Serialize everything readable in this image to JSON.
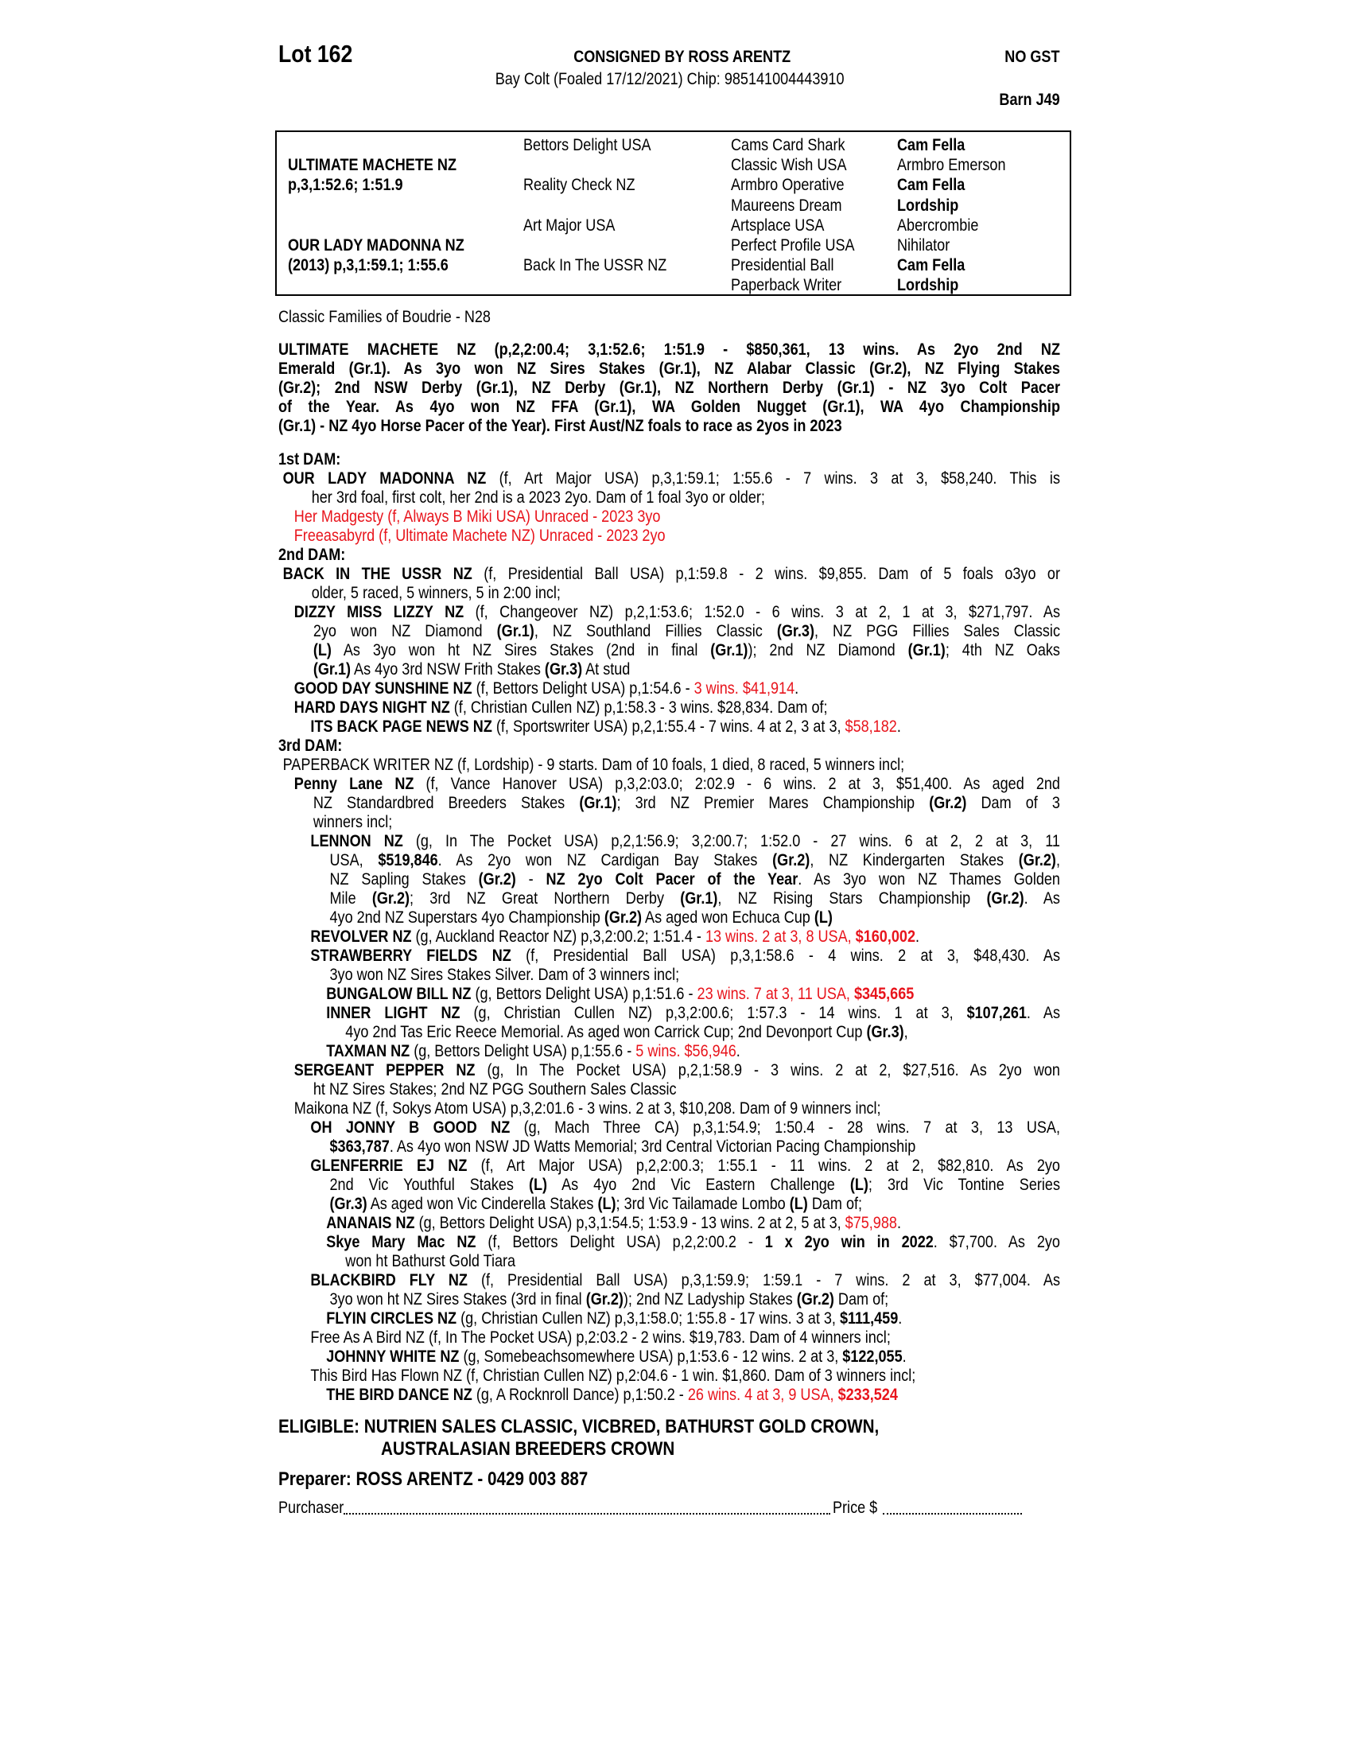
{
  "header": {
    "lot": "Lot 162",
    "consignor": "CONSIGNED BY ROSS ARENTZ",
    "description": "Bay Colt (Foaled 17/12/2021) Chip: 985141004443910",
    "gst": "NO GST",
    "barn": "Barn J49"
  },
  "pedigree": {
    "sire": {
      "name": "ULTIMATE MACHETE NZ",
      "record": "p,3,1:52.6; 1:51.9"
    },
    "dam": {
      "name": "OUR LADY MADONNA NZ",
      "record": "(2013) p,3,1:59.1; 1:55.6"
    },
    "grandparents": [
      "Bettors Delight USA",
      "Reality Check NZ",
      "Art Major USA",
      "Back In The USSR NZ"
    ],
    "great_grandparents": [
      "Cams Card Shark",
      "Classic Wish USA",
      "Armbro Operative",
      "Maureens Dream",
      "Artsplace USA",
      "Perfect Profile USA",
      "Presidential Ball",
      "Paperback Writer"
    ],
    "great_great": [
      [
        "Cam Fella",
        "b"
      ],
      [
        "Armbro Emerson",
        ""
      ],
      [
        "Cam Fella",
        "b"
      ],
      [
        "Lordship",
        "b"
      ],
      [
        "Abercrombie",
        ""
      ],
      [
        "Nihilator",
        ""
      ],
      [
        "Cam Fella",
        "b"
      ],
      [
        "Lordship",
        "b"
      ]
    ]
  },
  "family": "Classic Families of Boudrie - N28",
  "sire_para": [
    "ULTIMATE MACHETE NZ (p,2,2:00.4; 3,1:52.6; 1:51.9 - $850,361, 13 wins. As 2yo 2nd NZ",
    "Emerald (Gr.1). As 3yo won NZ Sires Stakes (Gr.1), NZ Alabar Classic (Gr.2), NZ Flying Stakes",
    "(Gr.2); 2nd NSW Derby (Gr.1), NZ Derby (Gr.1), NZ Northern Derby (Gr.1) - NZ 3yo Colt Pacer",
    "of the Year. As 4yo won NZ FFA (Gr.1), WA Golden Nugget (Gr.1), WA 4yo Championship",
    "(Gr.1) - NZ 4yo Horse Pacer of the Year). First Aust/NZ foals to race as 2yos in 2023"
  ],
  "colors": {
    "highlight": "#e8141c",
    "text": "#000000"
  },
  "body": {
    "paras": [
      {
        "heading": "1st DAM:"
      },
      {
        "level": 0,
        "lines": [
          [
            [
              "OUR LADY MADONNA NZ",
              "b"
            ],
            [
              " (f, Art Major USA) p,3,1:59.1; 1:55.6 - 7 wins. 3 at 3, $58,240. This is",
              ""
            ]
          ],
          [
            [
              "her 3rd foal, first colt, her 2nd is a 2023 2yo. Dam of 1 foal 3yo or older;",
              ""
            ]
          ]
        ]
      },
      {
        "level": 1,
        "lines": [
          [
            [
              "Her Madgesty (f, Always B Miki USA) Unraced - 2023 3yo",
              "r"
            ]
          ]
        ]
      },
      {
        "level": 1,
        "lines": [
          [
            [
              "Freeasabyrd (f, Ultimate Machete NZ) Unraced - 2023 2yo",
              "r"
            ]
          ]
        ]
      },
      {
        "heading": "2nd DAM:"
      },
      {
        "level": 0,
        "lines": [
          [
            [
              "BACK IN THE USSR NZ",
              "b"
            ],
            [
              " (f, Presidential Ball USA) p,1:59.8 - 2 wins. $9,855. Dam of 5 foals o3yo or",
              ""
            ]
          ],
          [
            [
              "older, 5 raced, 5 winners, 5 in 2:00 incl;",
              ""
            ]
          ]
        ]
      },
      {
        "level": 1,
        "lines": [
          [
            [
              "DIZZY MISS LIZZY NZ",
              "b"
            ],
            [
              " (f, Changeover NZ) p,2,1:53.6; 1:52.0 - 6 wins. 3 at 2, 1 at 3, $271,797. As",
              ""
            ]
          ],
          [
            [
              "2yo won NZ Diamond ",
              ""
            ],
            [
              "(Gr.1)",
              "b"
            ],
            [
              ", NZ Southland Fillies Classic ",
              ""
            ],
            [
              "(Gr.3)",
              "b"
            ],
            [
              ", NZ PGG Fillies Sales Classic",
              ""
            ]
          ],
          [
            [
              "(L)",
              "b"
            ],
            [
              " As 3yo won ht NZ Sires Stakes (2nd in final ",
              ""
            ],
            [
              "(Gr.1)",
              "b"
            ],
            [
              "); 2nd NZ Diamond ",
              ""
            ],
            [
              "(Gr.1)",
              "b"
            ],
            [
              "; 4th NZ Oaks",
              ""
            ]
          ],
          [
            [
              "(Gr.1)",
              "b"
            ],
            [
              " As 4yo 3rd NSW Frith Stakes ",
              ""
            ],
            [
              "(Gr.3)",
              "b"
            ],
            [
              " At stud",
              ""
            ]
          ]
        ]
      },
      {
        "level": 1,
        "lines": [
          [
            [
              "GOOD DAY SUNSHINE NZ",
              "b"
            ],
            [
              " (f, Bettors Delight USA) p,1:54.6 - ",
              ""
            ],
            [
              "3 wins. $41,914",
              "r"
            ],
            [
              ".",
              ""
            ]
          ]
        ]
      },
      {
        "level": 1,
        "lines": [
          [
            [
              "HARD DAYS NIGHT NZ",
              "b"
            ],
            [
              " (f, Christian Cullen NZ) p,1:58.3 - 3 wins. $28,834. Dam of;",
              ""
            ]
          ]
        ]
      },
      {
        "level": 2,
        "lines": [
          [
            [
              "ITS BACK PAGE NEWS NZ",
              "b"
            ],
            [
              " (f, Sportswriter USA) p,2,1:55.4 - 7 wins. 4 at 2, 3 at 3, ",
              ""
            ],
            [
              "$58,182",
              "r"
            ],
            [
              ".",
              ""
            ]
          ]
        ]
      },
      {
        "heading": "3rd DAM:"
      },
      {
        "level": 0,
        "lines": [
          [
            [
              "PAPERBACK WRITER NZ (f, Lordship) - 9 starts. Dam of 10 foals, 1 died, 8 raced, 5 winners incl;",
              ""
            ]
          ]
        ]
      },
      {
        "level": 1,
        "lines": [
          [
            [
              "Penny Lane NZ",
              "b"
            ],
            [
              " (f, Vance Hanover USA) p,3,2:03.0; 2:02.9 - 6 wins. 2 at 3, $51,400. As aged 2nd",
              ""
            ]
          ],
          [
            [
              "NZ Standardbred Breeders Stakes ",
              ""
            ],
            [
              "(Gr.1)",
              "b"
            ],
            [
              "; 3rd NZ Premier Mares Championship ",
              ""
            ],
            [
              "(Gr.2)",
              "b"
            ],
            [
              " Dam of 3",
              ""
            ]
          ],
          [
            [
              "winners incl;",
              ""
            ]
          ]
        ]
      },
      {
        "level": 2,
        "lines": [
          [
            [
              "LENNON NZ",
              "b"
            ],
            [
              " (g, In The Pocket USA) p,2,1:56.9; 3,2:00.7; 1:52.0 - 27 wins. 6 at 2, 2 at 3, 11",
              ""
            ]
          ],
          [
            [
              "USA, ",
              ""
            ],
            [
              "$519,846",
              "b"
            ],
            [
              ". As 2yo won NZ Cardigan Bay Stakes ",
              ""
            ],
            [
              "(Gr.2)",
              "b"
            ],
            [
              ", NZ Kindergarten Stakes ",
              ""
            ],
            [
              "(Gr.2)",
              "b"
            ],
            [
              ",",
              ""
            ]
          ],
          [
            [
              "NZ Sapling Stakes ",
              ""
            ],
            [
              "(Gr.2)",
              "b"
            ],
            [
              " - ",
              ""
            ],
            [
              "NZ 2yo Colt Pacer of the Year",
              "b"
            ],
            [
              ". As 3yo won NZ Thames Golden",
              ""
            ]
          ],
          [
            [
              "Mile ",
              ""
            ],
            [
              "(Gr.2)",
              "b"
            ],
            [
              "; 3rd NZ Great Northern Derby ",
              ""
            ],
            [
              "(Gr.1)",
              "b"
            ],
            [
              ", NZ Rising Stars Championship ",
              ""
            ],
            [
              "(Gr.2)",
              "b"
            ],
            [
              ". As",
              ""
            ]
          ],
          [
            [
              "4yo 2nd NZ Superstars 4yo Championship ",
              ""
            ],
            [
              "(Gr.2)",
              "b"
            ],
            [
              " As aged won Echuca Cup ",
              ""
            ],
            [
              "(L)",
              "b"
            ]
          ]
        ]
      },
      {
        "level": 2,
        "lines": [
          [
            [
              "REVOLVER NZ",
              "b"
            ],
            [
              " (g, Auckland Reactor NZ) p,3,2:00.2; 1:51.4 - ",
              ""
            ],
            [
              "13 wins. 2 at 3, 8 USA, ",
              "r"
            ],
            [
              "$160,002",
              "br"
            ],
            [
              ".",
              ""
            ]
          ]
        ]
      },
      {
        "level": 2,
        "lines": [
          [
            [
              "STRAWBERRY FIELDS NZ",
              "b"
            ],
            [
              " (f, Presidential Ball USA) p,3,1:58.6 - 4 wins. 2 at 3, $48,430. As",
              ""
            ]
          ],
          [
            [
              "3yo won NZ Sires Stakes Silver. Dam of 3 winners incl;",
              ""
            ]
          ]
        ]
      },
      {
        "level": 3,
        "lines": [
          [
            [
              "BUNGALOW BILL NZ",
              "b"
            ],
            [
              " (g, Bettors Delight USA) p,1:51.6 - ",
              ""
            ],
            [
              "23 wins. 7 at 3, 11 USA, ",
              "r"
            ],
            [
              "$345,665",
              "br"
            ]
          ]
        ]
      },
      {
        "level": 3,
        "lines": [
          [
            [
              "INNER LIGHT NZ",
              "b"
            ],
            [
              " (g, Christian Cullen NZ) p,3,2:00.6; 1:57.3 - 14 wins. 1 at 3, ",
              ""
            ],
            [
              "$107,261",
              "b"
            ],
            [
              ". As",
              ""
            ]
          ],
          [
            [
              "4yo 2nd Tas Eric Reece Memorial. As aged won Carrick Cup; 2nd Devonport Cup ",
              ""
            ],
            [
              "(Gr.3)",
              "b"
            ],
            [
              ",",
              ""
            ]
          ]
        ]
      },
      {
        "level": 3,
        "lines": [
          [
            [
              "TAXMAN NZ",
              "b"
            ],
            [
              " (g, Bettors Delight USA) p,1:55.6 - ",
              ""
            ],
            [
              "5 wins. $56,946",
              "r"
            ],
            [
              ".",
              ""
            ]
          ]
        ]
      },
      {
        "level": 1,
        "lines": [
          [
            [
              "SERGEANT PEPPER NZ",
              "b"
            ],
            [
              " (g, In The Pocket USA) p,2,1:58.9 - 3 wins. 2 at 2, $27,516. As 2yo won",
              ""
            ]
          ],
          [
            [
              "ht NZ Sires Stakes; 2nd NZ PGG Southern Sales Classic",
              ""
            ]
          ]
        ]
      },
      {
        "level": 1,
        "lines": [
          [
            [
              "Maikona NZ (f, Sokys Atom USA) p,3,2:01.6 - 3 wins. 2 at 3, $10,208. Dam of 9 winners incl;",
              ""
            ]
          ]
        ]
      },
      {
        "level": 2,
        "lines": [
          [
            [
              "OH JONNY B GOOD NZ",
              "b"
            ],
            [
              " (g, Mach Three CA) p,3,1:54.9; 1:50.4 - 28 wins. 7 at 3, 13 USA,",
              ""
            ]
          ],
          [
            [
              "$363,787",
              "b"
            ],
            [
              ". As 4yo won NSW JD Watts Memorial; 3rd Central Victorian Pacing Championship",
              ""
            ]
          ]
        ]
      },
      {
        "level": 2,
        "lines": [
          [
            [
              "GLENFERRIE EJ NZ",
              "b"
            ],
            [
              " (f, Art Major USA) p,2,2:00.3; 1:55.1 - 11 wins. 2 at 2, $82,810. As 2yo",
              ""
            ]
          ],
          [
            [
              "2nd Vic Youthful Stakes ",
              ""
            ],
            [
              "(L)",
              "b"
            ],
            [
              " As 4yo 2nd Vic Eastern Challenge ",
              ""
            ],
            [
              "(L)",
              "b"
            ],
            [
              "; 3rd Vic Tontine Series",
              ""
            ]
          ],
          [
            [
              "(Gr.3)",
              "b"
            ],
            [
              " As aged won Vic Cinderella Stakes ",
              ""
            ],
            [
              "(L)",
              "b"
            ],
            [
              "; 3rd Vic Tailamade Lombo ",
              ""
            ],
            [
              "(L)",
              "b"
            ],
            [
              " Dam of;",
              ""
            ]
          ]
        ]
      },
      {
        "level": 3,
        "lines": [
          [
            [
              "ANANAIS NZ",
              "b"
            ],
            [
              " (g, Bettors Delight USA) p,3,1:54.5; 1:53.9 - 13 wins. 2 at 2, 5 at 3, ",
              ""
            ],
            [
              "$75,988",
              "r"
            ],
            [
              ".",
              ""
            ]
          ]
        ]
      },
      {
        "level": 3,
        "lines": [
          [
            [
              "Skye Mary Mac NZ",
              "b"
            ],
            [
              " (f, Bettors Delight USA) p,2,2:00.2 - ",
              ""
            ],
            [
              "1 x 2yo win in 2022",
              "b"
            ],
            [
              ". $7,700. As 2yo",
              ""
            ]
          ],
          [
            [
              "won ht Bathurst Gold Tiara",
              ""
            ]
          ]
        ]
      },
      {
        "level": 2,
        "lines": [
          [
            [
              "BLACKBIRD FLY NZ",
              "b"
            ],
            [
              " (f, Presidential Ball USA) p,3,1:59.9; 1:59.1 - 7 wins. 2 at 3, $77,004. As",
              ""
            ]
          ],
          [
            [
              "3yo won ht NZ Sires Stakes (3rd in final ",
              ""
            ],
            [
              "(Gr.2)",
              "b"
            ],
            [
              "); 2nd NZ Ladyship Stakes ",
              ""
            ],
            [
              "(Gr.2)",
              "b"
            ],
            [
              " Dam of;",
              ""
            ]
          ]
        ]
      },
      {
        "level": 3,
        "lines": [
          [
            [
              "FLYIN CIRCLES NZ",
              "b"
            ],
            [
              " (g, Christian Cullen NZ) p,3,1:58.0; 1:55.8 - 17 wins. 3 at 3, ",
              ""
            ],
            [
              "$111,459",
              "b"
            ],
            [
              ".",
              ""
            ]
          ]
        ]
      },
      {
        "level": 2,
        "lines": [
          [
            [
              "Free As A Bird NZ (f, In The Pocket USA) p,2:03.2 - 2 wins. $19,783. Dam of 4 winners incl;",
              ""
            ]
          ]
        ]
      },
      {
        "level": 3,
        "lines": [
          [
            [
              "JOHNNY WHITE NZ",
              "b"
            ],
            [
              " (g, Somebeachsomewhere USA) p,1:53.6 - 12 wins. 2 at 3, ",
              ""
            ],
            [
              "$122,055",
              "b"
            ],
            [
              ".",
              ""
            ]
          ]
        ]
      },
      {
        "level": 2,
        "lines": [
          [
            [
              "This Bird Has Flown NZ (f, Christian Cullen NZ) p,2:04.6 - 1 win. $1,860. Dam of 3 winners incl;",
              ""
            ]
          ]
        ]
      },
      {
        "level": 3,
        "lines": [
          [
            [
              "THE BIRD DANCE NZ",
              "b"
            ],
            [
              " (g, A Rocknroll Dance) p,1:50.2 - ",
              ""
            ],
            [
              "26 wins. 4 at 3, 9 USA, ",
              "r"
            ],
            [
              "$233,524",
              "br"
            ]
          ]
        ]
      }
    ]
  },
  "eligible": {
    "label": "ELIGIBLE:",
    "line1": "NUTRIEN SALES CLASSIC, VICBRED, BATHURST GOLD CROWN,",
    "line2": "AUSTRALASIAN BREEDERS CROWN"
  },
  "preparer": "Preparer: ROSS ARENTZ - 0429 003 887",
  "purchase": {
    "purchaser_label": "Purchaser",
    "price_label": "Price $"
  }
}
